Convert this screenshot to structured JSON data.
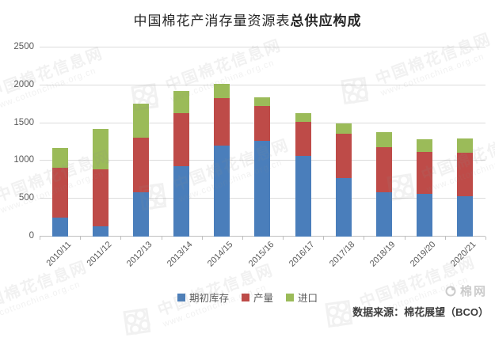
{
  "title": {
    "regular": "中国棉花产消存量资源表",
    "bold": "总供应构成"
  },
  "chart_data": {
    "type": "bar",
    "stacked": true,
    "title": "中国棉花产消存量资源表总供应构成",
    "categories": [
      "2010/11",
      "2011/12",
      "2012/13",
      "2013/14",
      "2014/15",
      "2015/16",
      "2016/17",
      "2017/18",
      "2018/19",
      "2019/20",
      "2020/21"
    ],
    "series": [
      {
        "id": "beginning-stock",
        "name": "期初库存",
        "color": "#4A7EBB",
        "values": [
          255,
          140,
          585,
          930,
          1200,
          1270,
          1065,
          775,
          590,
          560,
          530
        ]
      },
      {
        "id": "production",
        "name": "产量",
        "color": "#BE4B48",
        "values": [
          655,
          750,
          720,
          700,
          630,
          455,
          450,
          585,
          590,
          560,
          580
        ]
      },
      {
        "id": "imports",
        "name": "进口",
        "color": "#9BBB59",
        "values": [
          260,
          535,
          450,
          295,
          190,
          115,
          115,
          135,
          200,
          170,
          190
        ]
      }
    ],
    "totals": [
      1170,
      1425,
      1755,
      1925,
      2020,
      1840,
      1630,
      1495,
      1380,
      1290,
      1300
    ],
    "xlabel": "",
    "ylabel": "",
    "ylim": [
      0,
      2500
    ],
    "yticks": [
      0,
      500,
      1000,
      1500,
      2000,
      2500
    ],
    "grid": true,
    "legend_position": "bottom"
  },
  "source_note": "数据来源：棉花展望（BCO）",
  "corner_logo": "棉网",
  "watermark": {
    "site_name": "中国棉花信息网",
    "site_url": "www.cottonchina.org.cn"
  },
  "colors": {
    "grid": "#dcdcdc",
    "axis": "#bfbfbf",
    "tick_text": "#595959",
    "title_text": "#262626"
  }
}
